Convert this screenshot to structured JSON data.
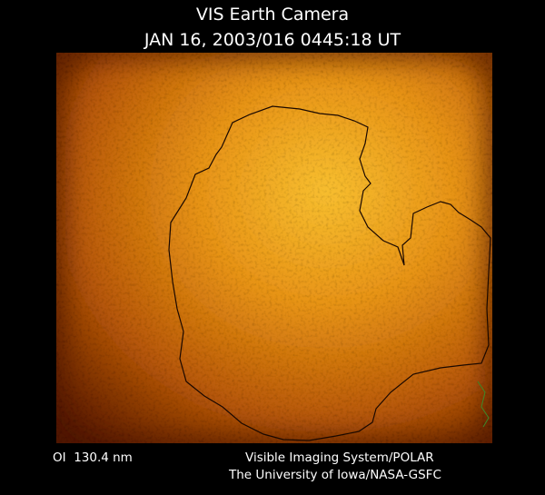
{
  "header": {
    "title": "VIS Earth Camera",
    "timestamp": "JAN 16, 2003/016 0445:18 UT"
  },
  "footer": {
    "wavelength": "OI  130.4 nm",
    "instrument": "Visible Imaging System/POLAR",
    "institution": "The University of Iowa/NASA-GSFC"
  }
}
